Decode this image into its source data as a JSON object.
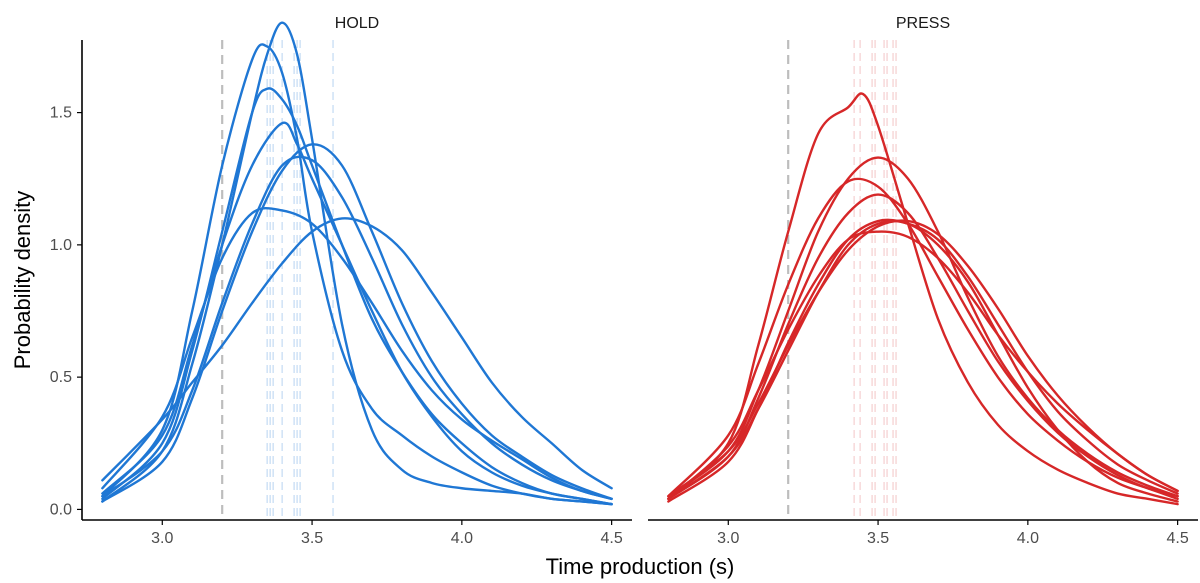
{
  "chart_data": {
    "type": "line",
    "subtype": "faceted density",
    "xlabel": "Time production (s)",
    "ylabel": "Probability density",
    "xlim": [
      2.8,
      4.5
    ],
    "ylim": [
      0,
      1.85
    ],
    "xticks": [
      "3.0",
      "3.5",
      "4.0",
      "4.5"
    ],
    "yticks": [
      "0.0",
      "0.5",
      "1.0",
      "1.5"
    ],
    "grid": false,
    "reference_line_x": 3.2,
    "reference_line_color": "#bdbdbd",
    "panels": [
      {
        "title": "HOLD",
        "color": "#1f77d4",
        "mean_line_color": "#b7d3f1",
        "mean_lines_x": [
          3.35,
          3.36,
          3.37,
          3.4,
          3.44,
          3.45,
          3.46,
          3.57
        ],
        "series": [
          {
            "x": [
              2.8,
              3.0,
              3.1,
              3.2,
              3.3,
              3.35,
              3.4,
              3.45,
              3.5,
              3.6,
              3.7,
              3.8,
              3.9,
              4.0,
              4.1,
              4.2,
              4.3,
              4.4,
              4.5
            ],
            "y": [
              0.05,
              0.3,
              0.75,
              1.3,
              1.7,
              1.75,
              1.65,
              1.4,
              1.05,
              0.6,
              0.38,
              0.28,
              0.2,
              0.14,
              0.09,
              0.06,
              0.04,
              0.03,
              0.02
            ]
          },
          {
            "x": [
              2.8,
              3.0,
              3.1,
              3.2,
              3.3,
              3.35,
              3.4,
              3.45,
              3.5,
              3.6,
              3.7,
              3.8,
              3.9,
              4.0,
              4.1,
              4.2,
              4.3,
              4.4,
              4.5
            ],
            "y": [
              0.03,
              0.22,
              0.55,
              1.0,
              1.5,
              1.72,
              1.84,
              1.72,
              1.4,
              0.7,
              0.3,
              0.15,
              0.1,
              0.08,
              0.07,
              0.06,
              0.04,
              0.03,
              0.02
            ]
          },
          {
            "x": [
              2.8,
              3.0,
              3.1,
              3.2,
              3.3,
              3.35,
              3.4,
              3.45,
              3.5,
              3.6,
              3.7,
              3.8,
              3.9,
              4.0,
              4.1,
              4.2,
              4.3,
              4.4,
              4.5
            ],
            "y": [
              0.04,
              0.25,
              0.6,
              1.05,
              1.5,
              1.59,
              1.55,
              1.45,
              1.3,
              1.0,
              0.72,
              0.52,
              0.36,
              0.25,
              0.16,
              0.1,
              0.06,
              0.04,
              0.02
            ]
          },
          {
            "x": [
              2.8,
              3.0,
              3.1,
              3.2,
              3.3,
              3.4,
              3.45,
              3.5,
              3.6,
              3.7,
              3.8,
              3.9,
              4.0,
              4.1,
              4.2,
              4.3,
              4.4,
              4.5
            ],
            "y": [
              0.06,
              0.28,
              0.62,
              1.0,
              1.3,
              1.46,
              1.38,
              1.25,
              1.0,
              0.75,
              0.52,
              0.35,
              0.22,
              0.14,
              0.09,
              0.06,
              0.04,
              0.02
            ]
          },
          {
            "x": [
              2.8,
              3.0,
              3.1,
              3.2,
              3.3,
              3.4,
              3.5,
              3.6,
              3.7,
              3.8,
              3.9,
              4.0,
              4.1,
              4.2,
              4.3,
              4.4,
              4.5
            ],
            "y": [
              0.03,
              0.18,
              0.42,
              0.75,
              1.05,
              1.28,
              1.38,
              1.3,
              1.05,
              0.78,
              0.56,
              0.4,
              0.28,
              0.2,
              0.13,
              0.08,
              0.04
            ]
          },
          {
            "x": [
              2.8,
              3.0,
              3.1,
              3.2,
              3.3,
              3.4,
              3.5,
              3.6,
              3.7,
              3.8,
              3.9,
              4.0,
              4.1,
              4.2,
              4.3,
              4.4,
              4.5
            ],
            "y": [
              0.05,
              0.22,
              0.45,
              0.78,
              1.08,
              1.3,
              1.32,
              1.18,
              0.95,
              0.7,
              0.5,
              0.36,
              0.25,
              0.17,
              0.11,
              0.07,
              0.04
            ]
          },
          {
            "x": [
              2.8,
              3.0,
              3.1,
              3.2,
              3.3,
              3.4,
              3.5,
              3.6,
              3.7,
              3.8,
              3.9,
              4.0,
              4.1,
              4.2,
              4.3,
              4.4,
              4.5
            ],
            "y": [
              0.08,
              0.35,
              0.65,
              0.95,
              1.12,
              1.13,
              1.08,
              0.95,
              0.78,
              0.6,
              0.45,
              0.34,
              0.26,
              0.19,
              0.12,
              0.07,
              0.04
            ]
          },
          {
            "x": [
              2.8,
              3.0,
              3.1,
              3.2,
              3.3,
              3.4,
              3.5,
              3.6,
              3.7,
              3.8,
              3.9,
              4.0,
              4.1,
              4.2,
              4.3,
              4.4,
              4.5
            ],
            "y": [
              0.11,
              0.34,
              0.48,
              0.62,
              0.78,
              0.93,
              1.05,
              1.1,
              1.07,
              0.98,
              0.82,
              0.65,
              0.48,
              0.35,
              0.25,
              0.15,
              0.08
            ]
          }
        ]
      },
      {
        "title": "PRESS",
        "color": "#d62728",
        "mean_line_color": "#f3c5c6",
        "mean_lines_x": [
          3.42,
          3.44,
          3.48,
          3.49,
          3.52,
          3.53,
          3.55,
          3.56
        ],
        "series": [
          {
            "x": [
              2.8,
              3.0,
              3.1,
              3.2,
              3.3,
              3.4,
              3.45,
              3.5,
              3.6,
              3.7,
              3.8,
              3.9,
              4.0,
              4.1,
              4.2,
              4.3,
              4.4,
              4.5
            ],
            "y": [
              0.04,
              0.25,
              0.62,
              1.05,
              1.42,
              1.52,
              1.57,
              1.45,
              1.08,
              0.72,
              0.48,
              0.32,
              0.22,
              0.15,
              0.1,
              0.06,
              0.04,
              0.02
            ]
          },
          {
            "x": [
              2.8,
              3.0,
              3.1,
              3.2,
              3.3,
              3.4,
              3.5,
              3.6,
              3.7,
              3.8,
              3.9,
              4.0,
              4.1,
              4.2,
              4.3,
              4.4,
              4.5
            ],
            "y": [
              0.05,
              0.22,
              0.45,
              0.75,
              1.05,
              1.25,
              1.33,
              1.25,
              1.05,
              0.8,
              0.58,
              0.42,
              0.3,
              0.21,
              0.14,
              0.09,
              0.05
            ]
          },
          {
            "x": [
              2.8,
              3.0,
              3.1,
              3.2,
              3.3,
              3.4,
              3.5,
              3.6,
              3.7,
              3.8,
              3.9,
              4.0,
              4.1,
              4.2,
              4.3,
              4.4,
              4.5
            ],
            "y": [
              0.05,
              0.28,
              0.55,
              0.85,
              1.1,
              1.24,
              1.22,
              1.08,
              0.88,
              0.68,
              0.5,
              0.36,
              0.26,
              0.18,
              0.12,
              0.08,
              0.04
            ]
          },
          {
            "x": [
              2.8,
              3.0,
              3.1,
              3.2,
              3.3,
              3.4,
              3.5,
              3.6,
              3.7,
              3.8,
              3.9,
              4.0,
              4.1,
              4.2,
              4.3,
              4.4,
              4.5
            ],
            "y": [
              0.04,
              0.2,
              0.42,
              0.7,
              0.95,
              1.12,
              1.19,
              1.12,
              0.95,
              0.75,
              0.56,
              0.41,
              0.29,
              0.2,
              0.13,
              0.08,
              0.05
            ]
          },
          {
            "x": [
              2.8,
              3.0,
              3.1,
              3.2,
              3.3,
              3.4,
              3.5,
              3.6,
              3.7,
              3.8,
              3.9,
              4.0,
              4.1,
              4.2,
              4.3,
              4.4,
              4.5
            ],
            "y": [
              0.03,
              0.18,
              0.38,
              0.63,
              0.85,
              1.02,
              1.09,
              1.08,
              1.02,
              0.88,
              0.7,
              0.52,
              0.37,
              0.26,
              0.17,
              0.11,
              0.06
            ]
          },
          {
            "x": [
              2.8,
              3.0,
              3.1,
              3.2,
              3.3,
              3.4,
              3.5,
              3.6,
              3.7,
              3.8,
              3.9,
              4.0,
              4.1,
              4.2,
              4.3,
              4.4,
              4.5
            ],
            "y": [
              0.05,
              0.22,
              0.4,
              0.62,
              0.82,
              0.98,
              1.07,
              1.09,
              1.04,
              0.92,
              0.76,
              0.58,
              0.43,
              0.31,
              0.21,
              0.13,
              0.07
            ]
          },
          {
            "x": [
              2.8,
              3.0,
              3.1,
              3.2,
              3.3,
              3.4,
              3.5,
              3.6,
              3.7,
              3.8,
              3.9,
              4.0,
              4.1,
              4.2,
              4.3,
              4.4,
              4.5
            ],
            "y": [
              0.04,
              0.2,
              0.38,
              0.6,
              0.82,
              1.0,
              1.08,
              1.08,
              1.0,
              0.86,
              0.66,
              0.46,
              0.3,
              0.18,
              0.1,
              0.06,
              0.03
            ]
          },
          {
            "x": [
              2.8,
              3.0,
              3.1,
              3.2,
              3.3,
              3.4,
              3.5,
              3.6,
              3.7,
              3.8,
              3.9,
              4.0,
              4.1,
              4.2,
              4.3,
              4.4,
              4.5
            ],
            "y": [
              0.04,
              0.24,
              0.45,
              0.68,
              0.88,
              1.02,
              1.05,
              1.03,
              0.95,
              0.82,
              0.66,
              0.52,
              0.4,
              0.3,
              0.21,
              0.13,
              0.07
            ]
          }
        ]
      }
    ]
  }
}
